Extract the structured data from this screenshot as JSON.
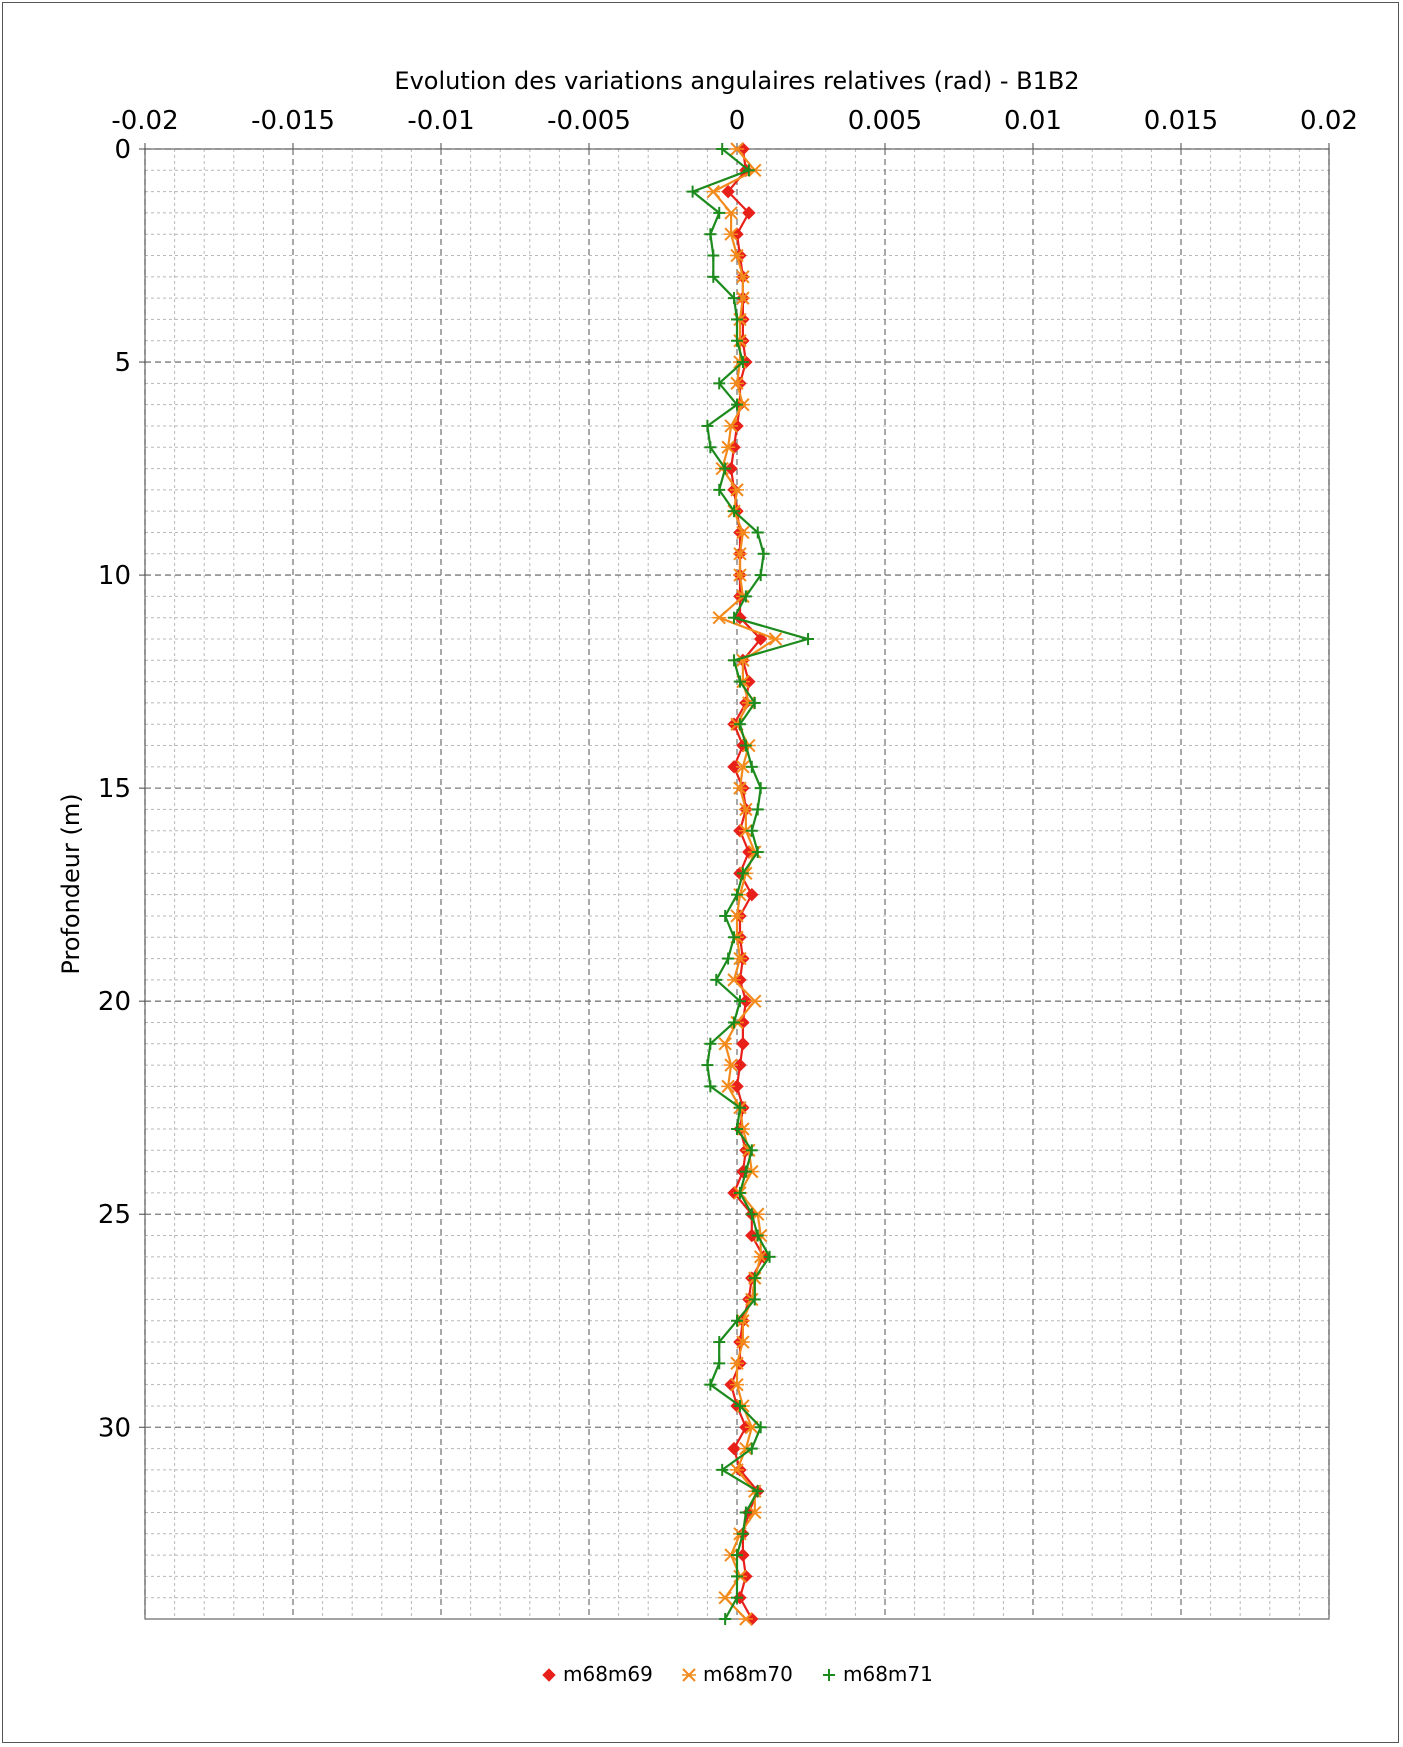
{
  "chart_data": {
    "type": "line",
    "title": "Evolution des variations angulaires relatives (rad) - B1B2",
    "xlabel": "Evolution des variations angulaires relatives (rad) - B1B2",
    "ylabel": "Profondeur (m)",
    "xlim": [
      -0.02,
      0.02
    ],
    "ylim": [
      0,
      34.5
    ],
    "y_inverted": true,
    "x_axis_position": "top",
    "x_ticks": [
      -0.02,
      -0.015,
      -0.01,
      -0.005,
      0,
      0.005,
      0.01,
      0.015,
      0.02
    ],
    "x_tick_labels": [
      "-0.02",
      "-0.015",
      "-0.01",
      "-0.005",
      "0",
      "0.005",
      "0.01",
      "0.015",
      "0.02"
    ],
    "y_ticks": [
      0,
      5,
      10,
      15,
      20,
      25,
      30
    ],
    "y_tick_labels": [
      "0",
      "5",
      "10",
      "15",
      "20",
      "25",
      "30"
    ],
    "grid": true,
    "legend_position": "bottom-center",
    "depths": [
      0,
      0.5,
      1,
      1.5,
      2,
      2.5,
      3,
      3.5,
      4,
      4.5,
      5,
      5.5,
      6,
      6.5,
      7,
      7.5,
      8,
      8.5,
      9,
      9.5,
      10,
      10.5,
      11,
      11.5,
      12,
      12.5,
      13,
      13.5,
      14,
      14.5,
      15,
      15.5,
      16,
      16.5,
      17,
      17.5,
      18,
      18.5,
      19,
      19.5,
      20,
      20.5,
      21,
      21.5,
      22,
      22.5,
      23,
      23.5,
      24,
      24.5,
      25,
      25.5,
      26,
      26.5,
      27,
      27.5,
      28,
      28.5,
      29,
      29.5,
      30,
      30.5,
      31,
      31.5,
      32,
      32.5,
      33,
      33.5,
      34,
      34.5
    ],
    "series": [
      {
        "name": "m68m69",
        "color": "#e8201a",
        "marker": "diamond",
        "values": [
          0.0002,
          0.0003,
          -0.0003,
          0.0004,
          0,
          0.0001,
          0.0002,
          0.0002,
          0.0002,
          0.0002,
          0.0003,
          0.0001,
          0.0001,
          0,
          -0.0001,
          -0.0002,
          -0.0001,
          0,
          0.0001,
          0.0001,
          0.0001,
          0.0001,
          0.0001,
          0.0008,
          0.0002,
          0.0004,
          0.0003,
          -0.0001,
          0.0002,
          -0.0001,
          0.0002,
          0.0003,
          0.0001,
          0.0004,
          0.0001,
          0.0005,
          0.0001,
          0.0001,
          0.0002,
          0.0001,
          0.0003,
          0.0002,
          0.0002,
          0.0001,
          0,
          0.0002,
          0.0001,
          0.0003,
          0.0002,
          -0.0001,
          0.0005,
          0.0005,
          0.0009,
          0.0005,
          0.0004,
          0.0002,
          0.0001,
          0.0001,
          -0.0002,
          0,
          0.0003,
          -0.0001,
          0.0001,
          0.0007,
          0.0004,
          0.0002,
          0.0002,
          0.0003,
          0.0001,
          0.0005
        ]
      },
      {
        "name": "m68m70",
        "color": "#f28a1c",
        "marker": "x",
        "values": [
          0,
          0.0006,
          -0.0008,
          -0.0002,
          -0.0002,
          0,
          0.0002,
          0.0002,
          0.0001,
          0.0001,
          0.0001,
          0,
          0.0002,
          -0.0002,
          -0.0003,
          -0.0005,
          0,
          -0.0001,
          0.0002,
          0.0001,
          0.0001,
          0.0002,
          -0.0006,
          0.0013,
          0.0002,
          0.0002,
          0.0004,
          0,
          0.0004,
          0.0002,
          0.0001,
          0.0003,
          0.0003,
          0.0006,
          0.0003,
          0.0001,
          0,
          0,
          0.0001,
          -0.0001,
          0.0006,
          0,
          -0.0004,
          -0.0002,
          -0.0003,
          0.0001,
          0.0002,
          0.0004,
          0.0005,
          0.0001,
          0.0007,
          0.0008,
          0.0008,
          0.0006,
          0.0005,
          0.0002,
          0.0002,
          0,
          0,
          0.0002,
          0.0005,
          0.0003,
          0,
          0.0006,
          0.0006,
          0.0001,
          -0.0002,
          0.0001,
          -0.0004,
          0.0003
        ]
      },
      {
        "name": "m68m71",
        "color": "#1c8a1c",
        "marker": "plus",
        "values": [
          -0.0005,
          0.0004,
          -0.0015,
          -0.0006,
          -0.0009,
          -0.0008,
          -0.0008,
          -0.0001,
          0,
          0,
          0.0002,
          -0.0006,
          0,
          -0.001,
          -0.0009,
          -0.0004,
          -0.0006,
          -0.0001,
          0.0007,
          0.0009,
          0.0008,
          0.0003,
          -0.0001,
          0.0024,
          -0.0001,
          0.0001,
          0.0006,
          0.0001,
          0.0003,
          0.0005,
          0.0008,
          0.0007,
          0.0005,
          0.0007,
          0.0002,
          0,
          -0.0004,
          -0.0001,
          -0.0003,
          -0.0007,
          0.0001,
          -0.0001,
          -0.0009,
          -0.001,
          -0.0009,
          0.0001,
          0,
          0.0005,
          0.0003,
          0.0001,
          0.0005,
          0.0007,
          0.0011,
          0.0006,
          0.0006,
          0,
          -0.0006,
          -0.0006,
          -0.0009,
          0.0001,
          0.0008,
          0.0005,
          -0.0005,
          0.0007,
          0.0003,
          0.0002,
          0,
          0,
          0,
          -0.0004
        ]
      }
    ]
  }
}
